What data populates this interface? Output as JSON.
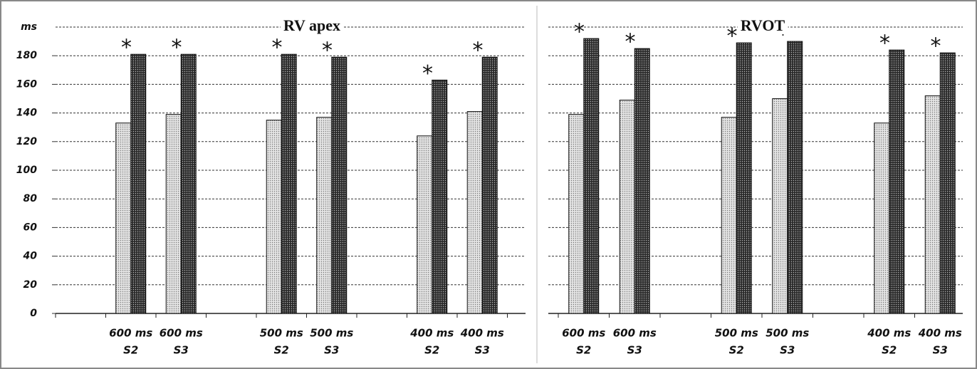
{
  "chart_data": [
    {
      "type": "bar",
      "title": "RV apex",
      "y_label": "ms",
      "categories": [
        null,
        [
          "600 ms",
          "S2"
        ],
        [
          "600 ms",
          "S3"
        ],
        null,
        [
          "500 ms",
          "S2"
        ],
        [
          "500 ms",
          "S3"
        ],
        null,
        [
          "400 ms",
          "S2"
        ],
        [
          "400 ms",
          "S3"
        ]
      ],
      "series": [
        {
          "color": "#e4e4e4",
          "values": [
            null,
            133,
            139,
            null,
            135,
            137,
            null,
            124,
            141
          ]
        },
        {
          "color": "#2a2a2a",
          "values": [
            null,
            181,
            181,
            null,
            181,
            179,
            null,
            163,
            179
          ]
        }
      ],
      "annotations": [
        null,
        "*",
        "*",
        null,
        "*",
        "*",
        null,
        "*",
        "*"
      ],
      "ylim": [
        0,
        200
      ],
      "yticks": [
        0,
        20,
        40,
        60,
        80,
        100,
        120,
        140,
        160,
        180
      ],
      "grid": true
    },
    {
      "type": "bar",
      "title": "RVOT",
      "categories": [
        [
          "600 ms",
          "S2"
        ],
        [
          "600 ms",
          "S3"
        ],
        null,
        [
          "500 ms",
          "S2"
        ],
        [
          "500 ms",
          "S3"
        ],
        null,
        [
          "400 ms",
          "S2"
        ],
        [
          "400 ms",
          "S3"
        ]
      ],
      "series": [
        {
          "color": "#e4e4e4",
          "values": [
            139,
            149,
            null,
            137,
            150,
            null,
            133,
            152
          ]
        },
        {
          "color": "#2a2a2a",
          "values": [
            192,
            185,
            null,
            189,
            190,
            null,
            184,
            182
          ]
        }
      ],
      "annotations": [
        "*",
        "*",
        null,
        "*",
        "*",
        null,
        "*",
        "*"
      ],
      "ylim": [
        0,
        200
      ],
      "grid": true
    }
  ]
}
